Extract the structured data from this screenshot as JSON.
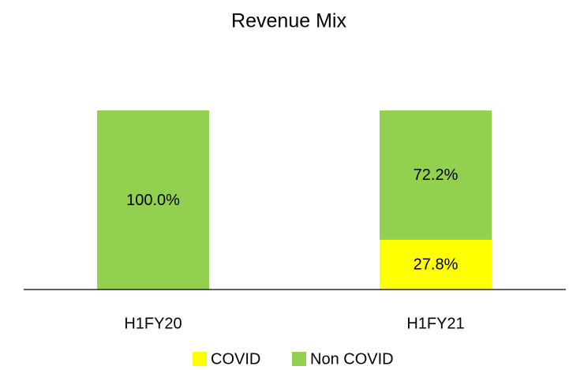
{
  "chart_data": {
    "type": "stacked_bar",
    "title": "Revenue Mix",
    "categories": [
      "H1FY20",
      "H1FY21"
    ],
    "series": [
      {
        "name": "COVID",
        "color": "#ffff00",
        "values": [
          0,
          27.8
        ],
        "value_labels": [
          null,
          "27.8%"
        ]
      },
      {
        "name": "Non COVID",
        "color": "#92d050",
        "values": [
          100,
          72.2
        ],
        "value_labels": [
          "100.0%",
          "72.2%"
        ]
      }
    ],
    "ylim": [
      0,
      100
    ],
    "legend": "bottom"
  }
}
